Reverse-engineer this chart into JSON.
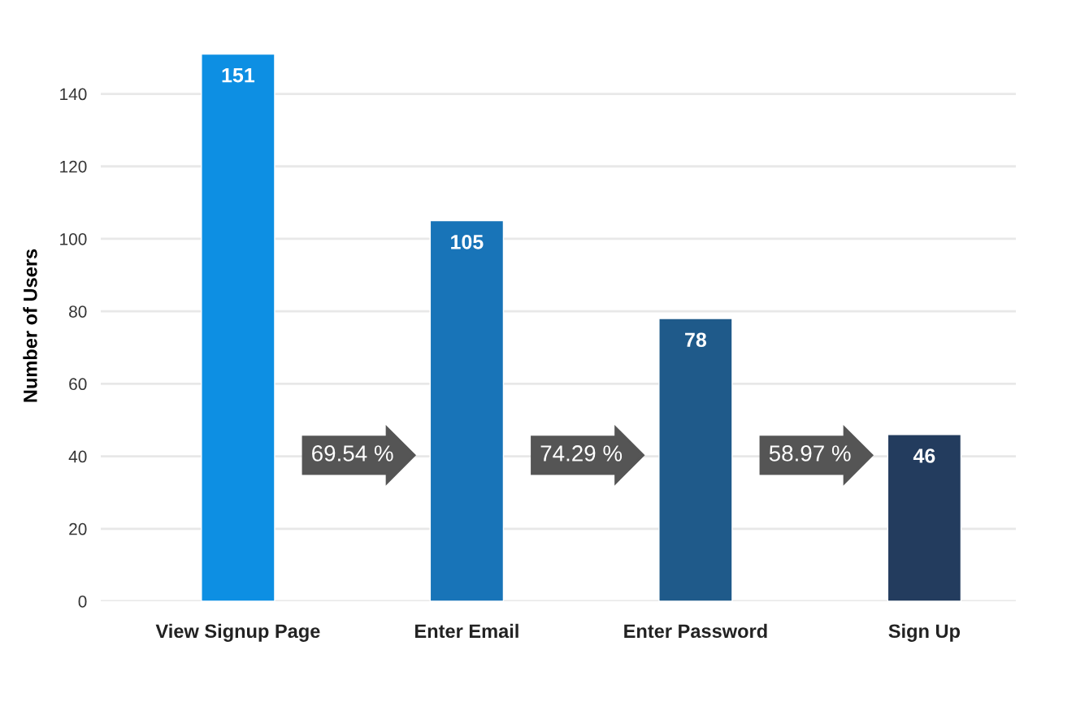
{
  "chart_data": {
    "type": "bar",
    "ylabel": "Number of Users",
    "categories": [
      "View Signup Page",
      "Enter Email",
      "Enter Password",
      "Sign Up"
    ],
    "values": [
      151,
      105,
      78,
      46
    ],
    "colors": [
      "#0d8fe3",
      "#1874b8",
      "#1f5a8a",
      "#233c5e"
    ],
    "ylim": [
      0,
      152
    ],
    "yticks": [
      0,
      20,
      40,
      60,
      80,
      100,
      120,
      140
    ],
    "grid": "y",
    "data_labels": true,
    "annotations": [
      "69.54 %",
      "74.29 %",
      "58.97 %"
    ]
  }
}
